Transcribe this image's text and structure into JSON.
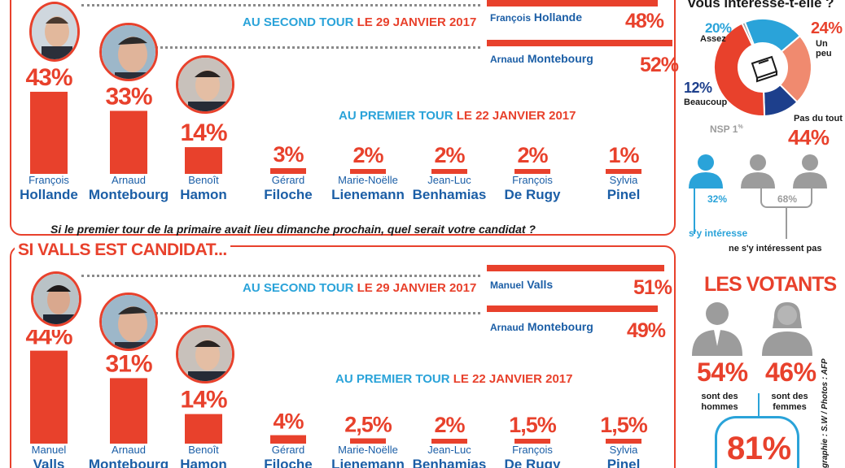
{
  "colors": {
    "accent": "#e8412c",
    "blue": "#2aa3d9",
    "navy": "#1b5ea6",
    "dark_blue": "#1d3f8c",
    "grey": "#9c9c9c"
  },
  "top": {
    "second_round": {
      "label_blue": "AU SECOND TOUR",
      "label_red": "LE 29 JANVIER 2017",
      "rows": [
        {
          "first": "François",
          "last": "Hollande",
          "pct": "48%",
          "value": 48
        },
        {
          "first": "Arnaud",
          "last": "Montebourg",
          "pct": "52%",
          "value": 52
        }
      ]
    },
    "first_round_label_blue": "AU PREMIER TOUR",
    "first_round_label_red": "LE 22 JANVIER 2017"
  },
  "bottom": {
    "section_title": "SI VALLS EST CANDIDAT...",
    "second_round": {
      "label_blue": "AU SECOND TOUR",
      "label_red": "LE 29 JANVIER 2017",
      "rows": [
        {
          "first": "Manuel",
          "last": "Valls",
          "pct": "51%",
          "value": 51
        },
        {
          "first": "Arnaud",
          "last": "Montebourg",
          "pct": "49%",
          "value": 49
        }
      ]
    },
    "first_round_label_blue": "AU PREMIER TOUR",
    "first_round_label_red": "LE 22 JANVIER 2017"
  },
  "question": "Si le premier tour de la primaire avait lieu dimanche prochain, quel serait votre candidat ?",
  "side": {
    "interest_title": "vous intéresse-t-elle ?",
    "nsp": "NSP 1",
    "nsp_sup": "%",
    "interest_labels": {
      "assez_pct": "20%",
      "assez": "Assez",
      "un_peu_pct": "24%",
      "un_peu": "Un peu",
      "beaucoup_pct": "12%",
      "beaucoup": "Beaucoup",
      "pas_du_tout": "Pas du tout",
      "pas_du_tout_pct": "44%"
    },
    "interested_pct": "32%",
    "not_interested_pct": "68%",
    "interested_label": "s'y intéresse",
    "not_interested_label": "ne s'y intéressent pas",
    "voters_title": "LES VOTANTS",
    "men_pct": "54%",
    "men_label_1": "sont des",
    "men_label_2": "hommes",
    "women_pct": "46%",
    "women_label_1": "sont des",
    "women_label_2": "femmes",
    "bottom_pct": "81%",
    "credit": "graphie : S.W / Photos : AFP"
  },
  "chart_data": [
    {
      "type": "bar",
      "title": "AU PREMIER TOUR LE 22 JANVIER 2017",
      "categories": [
        "François Hollande",
        "Arnaud Montebourg",
        "Benoît Hamon",
        "Gérard Filoche",
        "Marie-Noëlle Lienemann",
        "Jean-Luc Benhamias",
        "François De Rugy",
        "Sylvia Pinel"
      ],
      "values": [
        43,
        33,
        14,
        3,
        2,
        2,
        2,
        1
      ],
      "labels": [
        "43%",
        "33%",
        "14%",
        "3%",
        "2%",
        "2%",
        "2%",
        "1%"
      ],
      "first_names": [
        "François",
        "Arnaud",
        "Benoît",
        "Gérard",
        "Marie-Noëlle",
        "Jean-Luc",
        "François",
        "Sylvia"
      ],
      "last_names": [
        "Hollande",
        "Montebourg",
        "Hamon",
        "Filoche",
        "Lienemann",
        "Benhamias",
        "De Rugy",
        "Pinel"
      ]
    },
    {
      "type": "bar",
      "title": "AU PREMIER TOUR LE 22 JANVIER 2017",
      "categories": [
        "Manuel Valls",
        "Arnaud Montebourg",
        "Benoît Hamon",
        "Gérard Filoche",
        "Marie-Noëlle Lienemann",
        "Jean-Luc Benhamias",
        "François De Rugy",
        "Sylvia Pinel"
      ],
      "values": [
        44,
        31,
        14,
        4,
        2.5,
        2,
        1.5,
        1.5
      ],
      "labels": [
        "44%",
        "31%",
        "14%",
        "4%",
        "2,5%",
        "2%",
        "1,5%",
        "1,5%"
      ],
      "first_names": [
        "Manuel",
        "Arnaud",
        "Benoît",
        "Gérard",
        "Marie-Noëlle",
        "Jean-Luc",
        "François",
        "Sylvia"
      ],
      "last_names": [
        "Valls",
        "Montebourg",
        "Hamon",
        "Filoche",
        "Lienemann",
        "Benhamias",
        "De Rugy",
        "Pinel"
      ]
    },
    {
      "type": "pie",
      "title": "vous intéresse-t-elle ?",
      "categories": [
        "Assez",
        "Un peu",
        "Beaucoup",
        "Pas du tout",
        "NSP"
      ],
      "values": [
        20,
        24,
        12,
        44,
        1
      ],
      "colors": [
        "#2aa3d9",
        "#f08a6f",
        "#1d3f8c",
        "#e8412c",
        "#9c9c9c"
      ]
    }
  ]
}
